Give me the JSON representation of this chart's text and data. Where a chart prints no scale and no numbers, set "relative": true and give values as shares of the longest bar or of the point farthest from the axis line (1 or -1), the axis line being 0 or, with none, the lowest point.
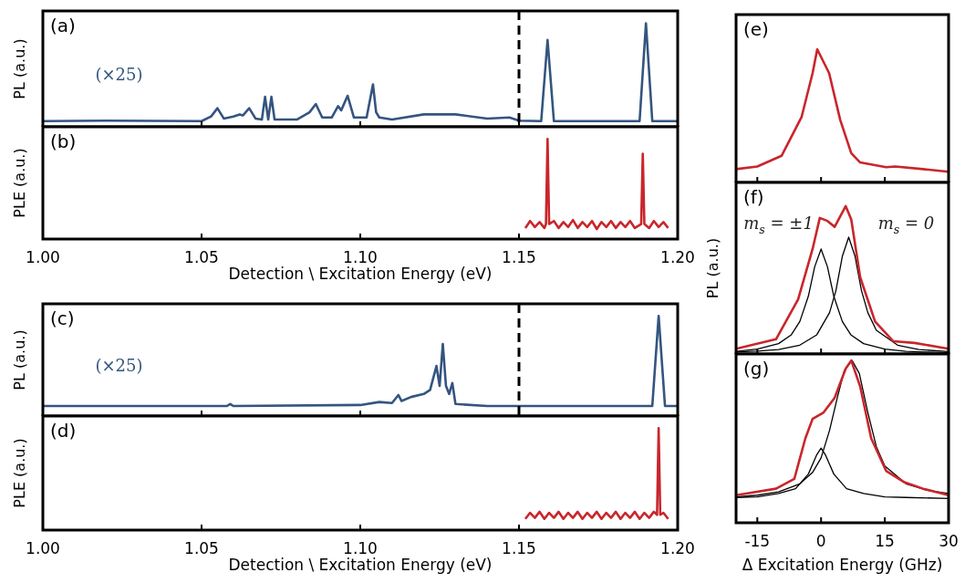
{
  "chart_data": [
    {
      "type": "line",
      "title": "(a)",
      "ylabel": "PL (a.u.)",
      "relative": true,
      "tick_labels": false,
      "xlim": [
        1.0,
        1.2
      ],
      "xticks": [
        1.0,
        1.05,
        1.1,
        1.15,
        1.2
      ],
      "annotations": [
        "(×25)"
      ],
      "ref_lines": [
        {
          "axis": "x",
          "value": 1.15,
          "color": "#000000",
          "line_style": "dashed"
        }
      ],
      "series": [
        {
          "color": "#34557f",
          "x": [
            1.0,
            1.02,
            1.05,
            1.053,
            1.055,
            1.057,
            1.06,
            1.062,
            1.063,
            1.065,
            1.067,
            1.069,
            1.07,
            1.071,
            1.072,
            1.073,
            1.08,
            1.084,
            1.086,
            1.088,
            1.091,
            1.093,
            1.094,
            1.096,
            1.098,
            1.102,
            1.104,
            1.105,
            1.106,
            1.11,
            1.12,
            1.13,
            1.14,
            1.147,
            1.15,
            1.157,
            1.159,
            1.161,
            1.188,
            1.19,
            1.192,
            1.2
          ],
          "values": [
            0.055,
            0.06,
            0.055,
            0.1,
            0.18,
            0.08,
            0.1,
            0.12,
            0.11,
            0.18,
            0.08,
            0.07,
            0.29,
            0.07,
            0.29,
            0.07,
            0.07,
            0.14,
            0.22,
            0.09,
            0.09,
            0.2,
            0.16,
            0.3,
            0.09,
            0.09,
            0.41,
            0.14,
            0.09,
            0.07,
            0.12,
            0.12,
            0.08,
            0.09,
            0.06,
            0.055,
            0.84,
            0.055,
            0.055,
            1,
            0.055,
            0.055
          ]
        }
      ]
    },
    {
      "type": "line",
      "title": "(b)",
      "ylabel": "PLE (a.u.)",
      "xlabel": "Detection \\ Excitation Energy (eV)",
      "relative": true,
      "tick_labels": "x",
      "xlim": [
        1.0,
        1.2
      ],
      "xticks": [
        {
          "value": 1.0,
          "label": "1.00"
        },
        1.05,
        {
          "value": 1.1,
          "label": "1.10"
        },
        1.15,
        {
          "value": 1.2,
          "label": "1.20"
        }
      ],
      "series": [
        {
          "color": "#c8262b",
          "x": [
            1.152,
            1.1535,
            1.155,
            1.1565,
            1.158,
            1.1585,
            1.159,
            1.1595,
            1.161,
            1.1625,
            1.164,
            1.1655,
            1.167,
            1.1685,
            1.17,
            1.1715,
            1.173,
            1.1745,
            1.176,
            1.1775,
            1.179,
            1.1805,
            1.182,
            1.1835,
            1.185,
            1.1865,
            1.1885,
            1.189,
            1.1895,
            1.191,
            1.1925,
            1.194,
            1.1955,
            1.197
          ],
          "values": [
            0.11,
            0.18,
            0.12,
            0.17,
            0.11,
            0.15,
            1,
            0.15,
            0.18,
            0.11,
            0.17,
            0.12,
            0.19,
            0.11,
            0.17,
            0.12,
            0.18,
            0.1,
            0.17,
            0.12,
            0.18,
            0.11,
            0.17,
            0.12,
            0.18,
            0.11,
            0.15,
            0.85,
            0.15,
            0.11,
            0.18,
            0.12,
            0.17,
            0.11
          ]
        }
      ]
    },
    {
      "type": "line",
      "title": "(c)",
      "ylabel": "PL (a.u.)",
      "relative": true,
      "tick_labels": false,
      "xlim": [
        1.0,
        1.2
      ],
      "xticks": [
        1.0,
        1.05,
        1.1,
        1.15,
        1.2
      ],
      "annotations": [
        "(×25)"
      ],
      "ref_lines": [
        {
          "axis": "x",
          "value": 1.15,
          "color": "#000000",
          "line_style": "dashed"
        }
      ],
      "series": [
        {
          "color": "#34557f",
          "x": [
            1.0,
            1.05,
            1.058,
            1.059,
            1.06,
            1.1,
            1.106,
            1.11,
            1.112,
            1.113,
            1.116,
            1.12,
            1.122,
            1.124,
            1.125,
            1.126,
            1.127,
            1.128,
            1.129,
            1.13,
            1.14,
            1.15,
            1.192,
            1.194,
            1.196,
            1.2
          ],
          "values": [
            0.1,
            0.1,
            0.1,
            0.12,
            0.1,
            0.11,
            0.14,
            0.13,
            0.21,
            0.15,
            0.19,
            0.22,
            0.26,
            0.5,
            0.3,
            0.72,
            0.3,
            0.22,
            0.33,
            0.12,
            0.1,
            0.1,
            0.1,
            1,
            0.1,
            0.1
          ]
        }
      ]
    },
    {
      "type": "line",
      "title": "(d)",
      "ylabel": "PLE (a.u.)",
      "xlabel": "Detection \\ Excitation Energy (eV)",
      "relative": true,
      "tick_labels": "x",
      "xlim": [
        1.0,
        1.2
      ],
      "xticks": [
        {
          "value": 1.0,
          "label": "1.00"
        },
        1.05,
        {
          "value": 1.1,
          "label": "1.10"
        },
        1.15,
        {
          "value": 1.2,
          "label": "1.20"
        }
      ],
      "series": [
        {
          "color": "#c8262b",
          "x": [
            1.152,
            1.1535,
            1.155,
            1.1565,
            1.158,
            1.1595,
            1.161,
            1.1625,
            1.164,
            1.1655,
            1.167,
            1.1685,
            1.17,
            1.1715,
            1.173,
            1.1745,
            1.176,
            1.1775,
            1.179,
            1.1805,
            1.182,
            1.1835,
            1.185,
            1.1865,
            1.188,
            1.1895,
            1.191,
            1.1925,
            1.1935,
            1.194,
            1.1945,
            1.1955,
            1.197
          ],
          "values": [
            0.11,
            0.17,
            0.12,
            0.18,
            0.11,
            0.17,
            0.12,
            0.18,
            0.11,
            0.17,
            0.12,
            0.18,
            0.11,
            0.17,
            0.12,
            0.18,
            0.11,
            0.17,
            0.12,
            0.18,
            0.11,
            0.17,
            0.12,
            0.18,
            0.11,
            0.17,
            0.12,
            0.18,
            0.15,
            1,
            0.15,
            0.17,
            0.11
          ]
        }
      ]
    },
    {
      "type": "line",
      "title": "(e)",
      "relative": true,
      "tick_labels": false,
      "xlim": [
        -20,
        30
      ],
      "xticks": [
        -15,
        0,
        15,
        30
      ],
      "series": [
        {
          "color": "#c8262b",
          "x": [
            -20,
            -15,
            -9.3,
            -4.6,
            -2,
            -0.9,
            1.9,
            4.5,
            7.1,
            9.2,
            15.3,
            17.5,
            24,
            30
          ],
          "values": [
            0.1,
            0.12,
            0.2,
            0.49,
            0.82,
            1,
            0.82,
            0.47,
            0.22,
            0.15,
            0.115,
            0.12,
            0.1,
            0.08
          ]
        }
      ]
    },
    {
      "type": "line",
      "title": "(f)",
      "ylabel": "PL (a.u.)",
      "relative": true,
      "tick_labels": false,
      "xlim": [
        -20,
        30
      ],
      "xticks": [
        -15,
        0,
        15,
        30
      ],
      "annotations": [
        "m$_{s}$ = ±1",
        "m$_{s}$ = 0"
      ],
      "series": [
        {
          "color": "#c8262b",
          "x": [
            -20,
            -10.6,
            -5.4,
            -2,
            -0.3,
            1.5,
            3.2,
            5.8,
            7.1,
            9.2,
            12.7,
            17,
            22,
            30
          ],
          "values": [
            0.035,
            0.1,
            0.37,
            0.71,
            0.92,
            0.9,
            0.86,
            1,
            0.91,
            0.52,
            0.22,
            0.086,
            0.075,
            0.035
          ]
        },
        {
          "color": "#000000",
          "x": [
            -20,
            -15,
            -10,
            -7,
            -5,
            -3,
            -1.5,
            0,
            1.5,
            3,
            5,
            7,
            10,
            15,
            20,
            25,
            30
          ],
          "values": [
            0.018,
            0.033,
            0.07,
            0.13,
            0.22,
            0.39,
            0.59,
            0.71,
            0.59,
            0.39,
            0.22,
            0.13,
            0.07,
            0.033,
            0.018,
            0.013,
            0.008
          ]
        },
        {
          "color": "#000000",
          "x": [
            -20,
            -15,
            -10,
            -5,
            -1,
            2,
            3.5,
            5,
            6.5,
            8,
            9.5,
            11,
            13,
            18,
            23,
            30
          ],
          "values": [
            0.013,
            0.019,
            0.03,
            0.06,
            0.13,
            0.28,
            0.43,
            0.66,
            0.79,
            0.66,
            0.43,
            0.28,
            0.16,
            0.06,
            0.03,
            0.016
          ]
        }
      ]
    },
    {
      "type": "line",
      "title": "(g)",
      "xlabel": "Δ Excitation Energy (GHz)",
      "relative": true,
      "tick_labels": "x",
      "xlim": [
        -20,
        30
      ],
      "xticks": [
        -15,
        0,
        15,
        30
      ],
      "series": [
        {
          "color": "#c8262b",
          "x": [
            -20,
            -10.6,
            -6.3,
            -3.7,
            -2,
            0.6,
            3.2,
            5.8,
            7.1,
            9.2,
            11.8,
            15.3,
            19.6,
            24,
            30
          ],
          "values": [
            0.17,
            0.21,
            0.27,
            0.52,
            0.64,
            0.68,
            0.77,
            0.95,
            1,
            0.84,
            0.52,
            0.32,
            0.25,
            0.21,
            0.17
          ]
        },
        {
          "color": "#000000",
          "x": [
            -20,
            -15,
            -10,
            -6,
            -3,
            -1,
            0,
            1,
            3,
            6,
            10,
            15,
            20,
            30
          ],
          "values": [
            0.156,
            0.16,
            0.18,
            0.21,
            0.3,
            0.42,
            0.46,
            0.42,
            0.3,
            0.21,
            0.18,
            0.16,
            0.156,
            0.15
          ]
        },
        {
          "color": "#000000",
          "x": [
            -20,
            -15,
            -10,
            -5,
            -2,
            0,
            2,
            4,
            5.5,
            7.3,
            9,
            11,
            13,
            15,
            20,
            25,
            30
          ],
          "values": [
            0.16,
            0.17,
            0.19,
            0.24,
            0.31,
            0.4,
            0.57,
            0.79,
            0.94,
            1,
            0.92,
            0.68,
            0.47,
            0.35,
            0.24,
            0.2,
            0.18
          ]
        }
      ]
    }
  ]
}
